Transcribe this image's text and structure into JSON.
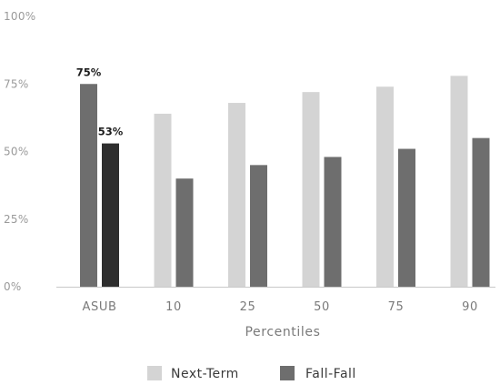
{
  "chart_data": {
    "type": "bar",
    "xlabel": "Percentiles",
    "ylabel": "",
    "ylim": [
      0,
      100
    ],
    "yticks": [
      "0%",
      "25%",
      "50%",
      "75%",
      "100%"
    ],
    "grid": false,
    "legend_position": "bottom",
    "categories": [
      "ASUB",
      "10",
      "25",
      "50",
      "75",
      "90"
    ],
    "series": [
      {
        "name": "Next-Term",
        "values": [
          75,
          64,
          68,
          72,
          74,
          78
        ],
        "color": "#d4d4d4"
      },
      {
        "name": "Fall-Fall",
        "values": [
          53,
          40,
          45,
          48,
          51,
          55
        ],
        "color": "#6e6e6e"
      }
    ],
    "highlight": {
      "category": "ASUB",
      "colors": [
        "#6e6e6e",
        "#2e2e2e"
      ]
    },
    "data_labels": [
      {
        "category": "ASUB",
        "series": "Next-Term",
        "text": "75%"
      },
      {
        "category": "ASUB",
        "series": "Fall-Fall",
        "text": "53%"
      }
    ]
  }
}
